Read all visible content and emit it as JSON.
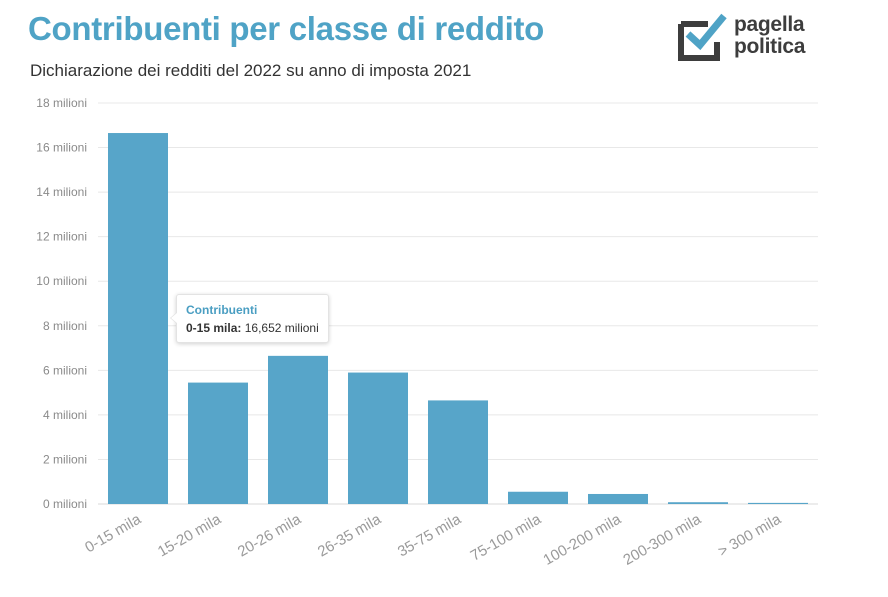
{
  "header": {
    "title": "Contribuenti per classe di reddito",
    "subtitle": "Dichiarazione dei redditi del 2022 su anno di imposta 2021"
  },
  "logo": {
    "line1": "pagella",
    "line2": "politica",
    "mark_icon": "checkbox-check-icon"
  },
  "colors": {
    "title": "#4fa3c6",
    "bar": "#57a5c9"
  },
  "tooltip": {
    "series": "Contribuenti",
    "category": "0-15 mila",
    "separator": ":",
    "value": "16,652 milioni"
  },
  "chart_data": {
    "type": "bar",
    "categories": [
      "0-15 mila",
      "15-20 mila",
      "20-26 mila",
      "26-35 mila",
      "35-75 mila",
      "75-100 mila",
      "100-200 mila",
      "200-300 mila",
      "> 300 mila"
    ],
    "series": [
      {
        "name": "Contribuenti",
        "values": [
          16.652,
          5.45,
          6.65,
          5.9,
          4.65,
          0.55,
          0.45,
          0.08,
          0.05
        ]
      }
    ],
    "yticks": [
      "0 milioni",
      "2 milioni",
      "4 milioni",
      "6 milioni",
      "8 milioni",
      "10 milioni",
      "12 milioni",
      "14 milioni",
      "16 milioni",
      "18 milioni"
    ],
    "ylim": [
      0,
      18
    ],
    "grid": true,
    "xlabel": "",
    "ylabel": ""
  }
}
